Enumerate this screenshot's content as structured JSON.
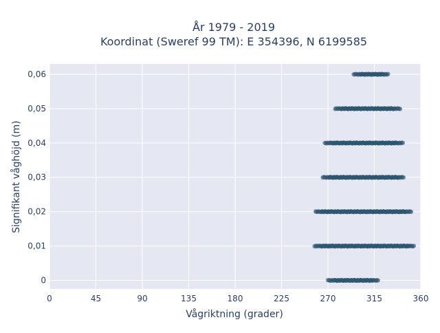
{
  "chart_data": {
    "type": "scatter",
    "title_line1": "År 1979 - 2019",
    "title_line2": "Koordinat (Sweref 99 TM): E 354396, N 6199585",
    "xlabel": "Vågriktning (grader)",
    "ylabel": "Signifikant våghöjd (m)",
    "xlim": [
      0,
      360
    ],
    "ylim": [
      -0.0025,
      0.063
    ],
    "xticks": [
      {
        "value": 0,
        "label": "0"
      },
      {
        "value": 45,
        "label": "45"
      },
      {
        "value": 90,
        "label": "90"
      },
      {
        "value": 135,
        "label": "135"
      },
      {
        "value": 180,
        "label": "180"
      },
      {
        "value": 225,
        "label": "225"
      },
      {
        "value": 270,
        "label": "270"
      },
      {
        "value": 315,
        "label": "315"
      },
      {
        "value": 360,
        "label": "360"
      }
    ],
    "yticks": [
      {
        "value": 0,
        "label": "0"
      },
      {
        "value": 0.01,
        "label": "0,01"
      },
      {
        "value": 0.02,
        "label": "0,02"
      },
      {
        "value": 0.03,
        "label": "0,03"
      },
      {
        "value": 0.04,
        "label": "0,04"
      },
      {
        "value": 0.05,
        "label": "0,05"
      },
      {
        "value": 0.06,
        "label": "0,06"
      }
    ],
    "grid": true,
    "marker_color": "#2e5670",
    "plot_bg": "#e5e8f2",
    "point_bands": [
      {
        "y": 0.0,
        "x_min": 270,
        "x_max": 319
      },
      {
        "y": 0.01,
        "x_min": 257,
        "x_max": 354
      },
      {
        "y": 0.02,
        "x_min": 258,
        "x_max": 351
      },
      {
        "y": 0.03,
        "x_min": 265,
        "x_max": 344
      },
      {
        "y": 0.04,
        "x_min": 267,
        "x_max": 343
      },
      {
        "y": 0.05,
        "x_min": 277,
        "x_max": 340
      },
      {
        "y": 0.06,
        "x_min": 295,
        "x_max": 329
      }
    ]
  }
}
